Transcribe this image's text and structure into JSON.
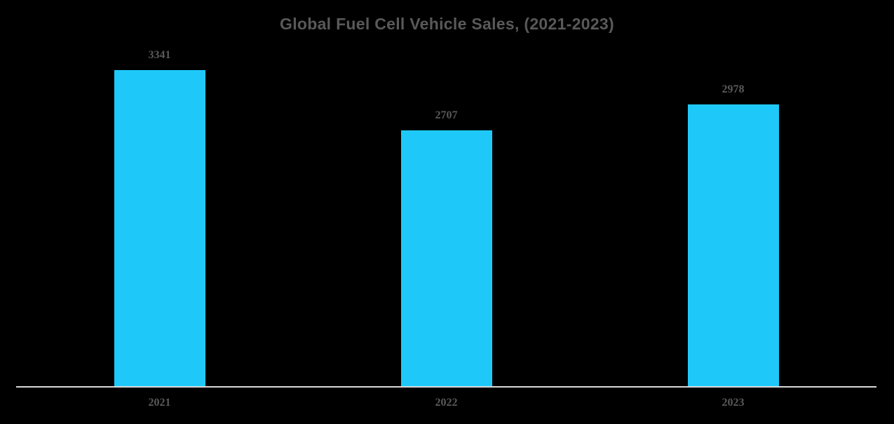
{
  "chart_data": {
    "type": "bar",
    "title": "Global Fuel Cell Vehicle Sales, (2021-2023)",
    "categories": [
      "2021",
      "2022",
      "2023"
    ],
    "values": [
      3341,
      2707,
      2978
    ],
    "xlabel": "",
    "ylabel": "",
    "ylim": [
      0,
      3341
    ],
    "grid": false,
    "legend": false,
    "value_labels_shown": true,
    "colors": {
      "background": "#000000",
      "bar": "#1EC9FA",
      "title": "#595959",
      "value_label": "#595959",
      "axis_label": "#595959",
      "axis_line": "#D9D9D9"
    }
  }
}
